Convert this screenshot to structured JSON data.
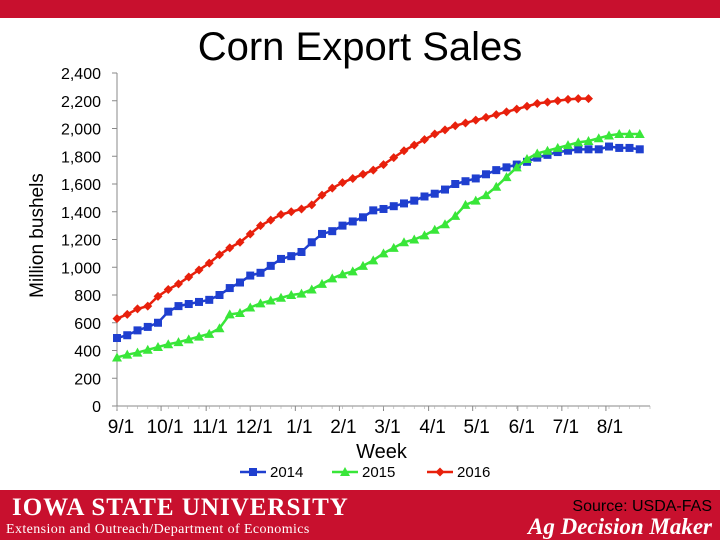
{
  "chart_data": {
    "type": "line",
    "title": "Corn Export Sales",
    "xlabel": "Week",
    "ylabel": "Million bushels",
    "ylim": [
      0,
      2400
    ],
    "yticks": [
      0,
      200,
      400,
      600,
      800,
      1000,
      1200,
      1400,
      1600,
      1800,
      2000,
      2200,
      2400
    ],
    "ytick_labels": [
      "0",
      "200",
      "400",
      "600",
      "800",
      "1,000",
      "1,200",
      "1,400",
      "1,600",
      "1,800",
      "2,000",
      "2,200",
      "2,400"
    ],
    "xlim": [
      0,
      52
    ],
    "xticks": [
      0,
      4.3,
      8.7,
      13,
      17.4,
      21.7,
      26,
      30.4,
      34.7,
      39.1,
      43.4,
      47.7
    ],
    "xtick_labels": [
      "9/1",
      "10/1",
      "11/1",
      "12/1",
      "1/1",
      "2/1",
      "3/1",
      "4/1",
      "5/1",
      "6/1",
      "7/1",
      "8/1"
    ],
    "legend_position": "bottom",
    "series": [
      {
        "name": "2014",
        "color": "#1f3fcf",
        "marker": "square",
        "values": [
          490,
          510,
          545,
          570,
          600,
          680,
          720,
          735,
          750,
          765,
          800,
          850,
          890,
          940,
          960,
          1010,
          1060,
          1080,
          1110,
          1180,
          1240,
          1260,
          1300,
          1330,
          1360,
          1410,
          1420,
          1440,
          1460,
          1480,
          1510,
          1530,
          1560,
          1600,
          1620,
          1640,
          1670,
          1700,
          1720,
          1740,
          1760,
          1790,
          1810,
          1830,
          1840,
          1850,
          1850,
          1850,
          1870,
          1860,
          1860,
          1850
        ]
      },
      {
        "name": "2015",
        "color": "#39e639",
        "marker": "triangle",
        "values": [
          350,
          370,
          385,
          405,
          425,
          445,
          460,
          480,
          500,
          520,
          560,
          660,
          670,
          710,
          740,
          760,
          780,
          800,
          810,
          840,
          880,
          920,
          950,
          970,
          1010,
          1050,
          1100,
          1140,
          1180,
          1200,
          1230,
          1270,
          1310,
          1370,
          1450,
          1480,
          1520,
          1580,
          1650,
          1720,
          1780,
          1820,
          1840,
          1860,
          1880,
          1900,
          1910,
          1930,
          1950,
          1960,
          1960,
          1960
        ]
      },
      {
        "name": "2016",
        "color": "#e8200c",
        "marker": "diamond",
        "values": [
          630,
          660,
          700,
          720,
          790,
          840,
          880,
          930,
          980,
          1030,
          1090,
          1140,
          1180,
          1240,
          1300,
          1340,
          1380,
          1400,
          1420,
          1450,
          1520,
          1570,
          1610,
          1640,
          1670,
          1700,
          1740,
          1790,
          1840,
          1880,
          1920,
          1960,
          1990,
          2020,
          2040,
          2060,
          2080,
          2100,
          2120,
          2140,
          2160,
          2180,
          2190,
          2200,
          2210,
          2215,
          2215
        ]
      }
    ]
  },
  "footer": {
    "university": "IOWA STATE UNIVERSITY",
    "department": "Extension and Outreach/Department of Economics",
    "source": "Source: USDA-FAS",
    "brand": "Ag Decision Maker"
  }
}
